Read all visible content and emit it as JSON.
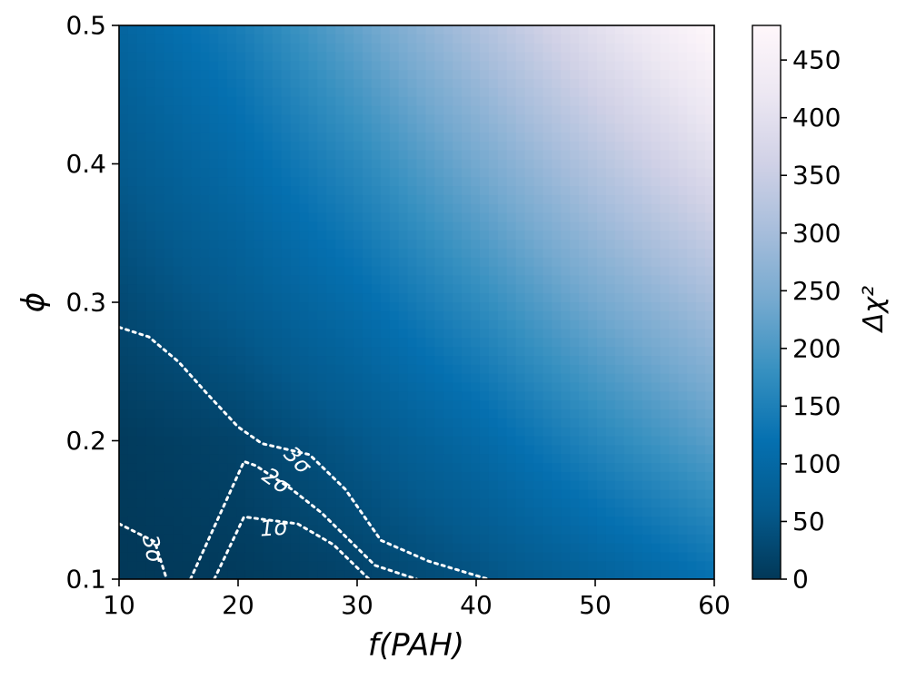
{
  "chart_data": {
    "type": "heatmap",
    "xlabel": "f(PAH)",
    "ylabel": "ϕ",
    "colorbar_label": "Δχ²",
    "xlim": [
      10,
      60
    ],
    "ylim": [
      0.1,
      0.5
    ],
    "xticks": [
      "10",
      "20",
      "30",
      "40",
      "50",
      "60"
    ],
    "yticks": [
      "0.1",
      "0.2",
      "0.3",
      "0.4",
      "0.5"
    ],
    "color_range": [
      0,
      480
    ],
    "colorbar_ticks": [
      "0",
      "50",
      "100",
      "150",
      "200",
      "250",
      "300",
      "350",
      "400",
      "450"
    ],
    "colormap": [
      "#023858",
      "#045a8d",
      "#0570b0",
      "#3690c0",
      "#74a9cf",
      "#a6bddb",
      "#d0d1e6",
      "#ece7f2",
      "#fff7fb"
    ],
    "surface": {
      "x": [
        10,
        20,
        30,
        40,
        50,
        60
      ],
      "y": [
        0.1,
        0.2,
        0.3,
        0.4,
        0.5
      ],
      "z": [
        [
          0,
          5,
          20,
          45,
          80,
          120
        ],
        [
          5,
          20,
          55,
          100,
          160,
          215
        ],
        [
          30,
          65,
          110,
          170,
          240,
          300
        ],
        [
          60,
          105,
          165,
          240,
          320,
          395
        ],
        [
          90,
          145,
          225,
          310,
          400,
          480
        ]
      ]
    },
    "contours": [
      {
        "label": "1σ",
        "points": [
          [
            18.0,
            0.1
          ],
          [
            20.5,
            0.145
          ],
          [
            25.0,
            0.14
          ],
          [
            28.0,
            0.125
          ],
          [
            31.0,
            0.1
          ]
        ]
      },
      {
        "label": "2σ",
        "points": [
          [
            16.0,
            0.1
          ],
          [
            20.5,
            0.185
          ],
          [
            21.5,
            0.182
          ],
          [
            24.5,
            0.165
          ],
          [
            27.0,
            0.148
          ],
          [
            31.5,
            0.11
          ],
          [
            35.0,
            0.1
          ]
        ]
      },
      {
        "label": "3σ",
        "points": [
          [
            10.0,
            0.282
          ],
          [
            12.5,
            0.275
          ],
          [
            15.0,
            0.257
          ],
          [
            17.5,
            0.233
          ],
          [
            20.0,
            0.21
          ],
          [
            22.0,
            0.198
          ],
          [
            26.0,
            0.19
          ],
          [
            29.0,
            0.165
          ],
          [
            32.0,
            0.128
          ],
          [
            36.0,
            0.113
          ],
          [
            41.0,
            0.1
          ]
        ]
      },
      {
        "label": "3σ",
        "points": [
          [
            10.0,
            0.14
          ],
          [
            13.0,
            0.127
          ],
          [
            14.0,
            0.1
          ]
        ]
      }
    ],
    "contour_labels": [
      {
        "text": "1σ",
        "x": 23.0,
        "y": 0.137,
        "angle": -4
      },
      {
        "text": "2σ",
        "x": 23.2,
        "y": 0.171,
        "angle": 35
      },
      {
        "text": "3σ",
        "x": 25.0,
        "y": 0.186,
        "angle": 45
      },
      {
        "text": "3σ",
        "x": 12.8,
        "y": 0.122,
        "angle": 78
      }
    ]
  }
}
